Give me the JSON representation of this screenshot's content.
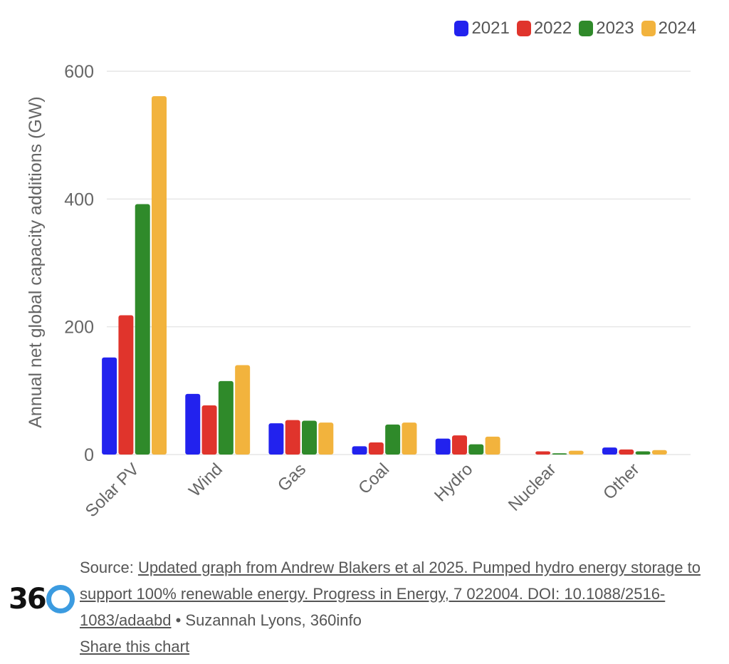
{
  "legend": [
    {
      "label": "2021",
      "color": "#2222ee"
    },
    {
      "label": "2022",
      "color": "#e0342c"
    },
    {
      "label": "2023",
      "color": "#2f8a2a"
    },
    {
      "label": "2024",
      "color": "#f2b33d"
    }
  ],
  "chart_data": {
    "type": "bar",
    "ylabel": "Annual net global capacity additions (GW)",
    "ylim": [
      0,
      600
    ],
    "yticks": [
      "0",
      "200",
      "400",
      "600"
    ],
    "grid": true,
    "legend_position": "top-right",
    "categories": [
      "Solar PV",
      "Wind",
      "Gas",
      "Coal",
      "Hydro",
      "Nuclear",
      "Other"
    ],
    "series": [
      {
        "name": "2021",
        "color": "#2222ee",
        "values": [
          152,
          95,
          49,
          13,
          25,
          0,
          11
        ]
      },
      {
        "name": "2022",
        "color": "#e0342c",
        "values": [
          218,
          77,
          54,
          19,
          30,
          5,
          8
        ]
      },
      {
        "name": "2023",
        "color": "#2f8a2a",
        "values": [
          392,
          115,
          53,
          47,
          16,
          2,
          5
        ]
      },
      {
        "name": "2024",
        "color": "#f2b33d",
        "values": [
          561,
          140,
          50,
          50,
          28,
          6,
          7
        ]
      }
    ]
  },
  "footer": {
    "source_prefix": "Source: ",
    "source_link": "Updated graph from Andrew Blakers et al 2025. Pumped hydro energy storage to support 100% renewable energy. Progress in Energy, 7 022004. DOI: 10.1088/2516-1083/adaabd",
    "credit": " • Suzannah Lyons, 360info",
    "share_link": "Share this chart"
  },
  "logo": {
    "text": "36"
  }
}
